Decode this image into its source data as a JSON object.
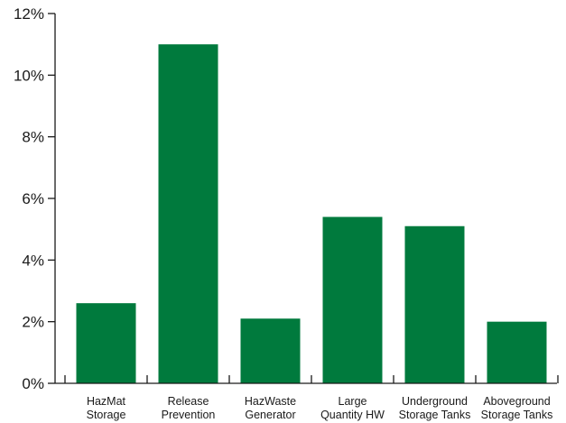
{
  "chart_data": {
    "type": "bar",
    "categories": [
      [
        "HazMat",
        "Storage"
      ],
      [
        "Release",
        "Prevention"
      ],
      [
        "HazWaste",
        "Generator"
      ],
      [
        "Large",
        "Quantity HW"
      ],
      [
        "Underground",
        "Storage Tanks"
      ],
      [
        "Aboveground",
        "Storage Tanks"
      ]
    ],
    "values": [
      2.6,
      11.0,
      2.1,
      5.4,
      5.1,
      2.0
    ],
    "ylim": [
      0,
      12
    ],
    "yticks": [
      0,
      2,
      4,
      6,
      8,
      10,
      12
    ],
    "ytick_labels": [
      "0%",
      "2%",
      "4%",
      "6%",
      "8%",
      "10%",
      "12%"
    ],
    "xlabel": "",
    "ylabel": "",
    "title": "",
    "grid": false,
    "bar_color": "#007a3d",
    "axis_color": "#1a1a1a"
  }
}
